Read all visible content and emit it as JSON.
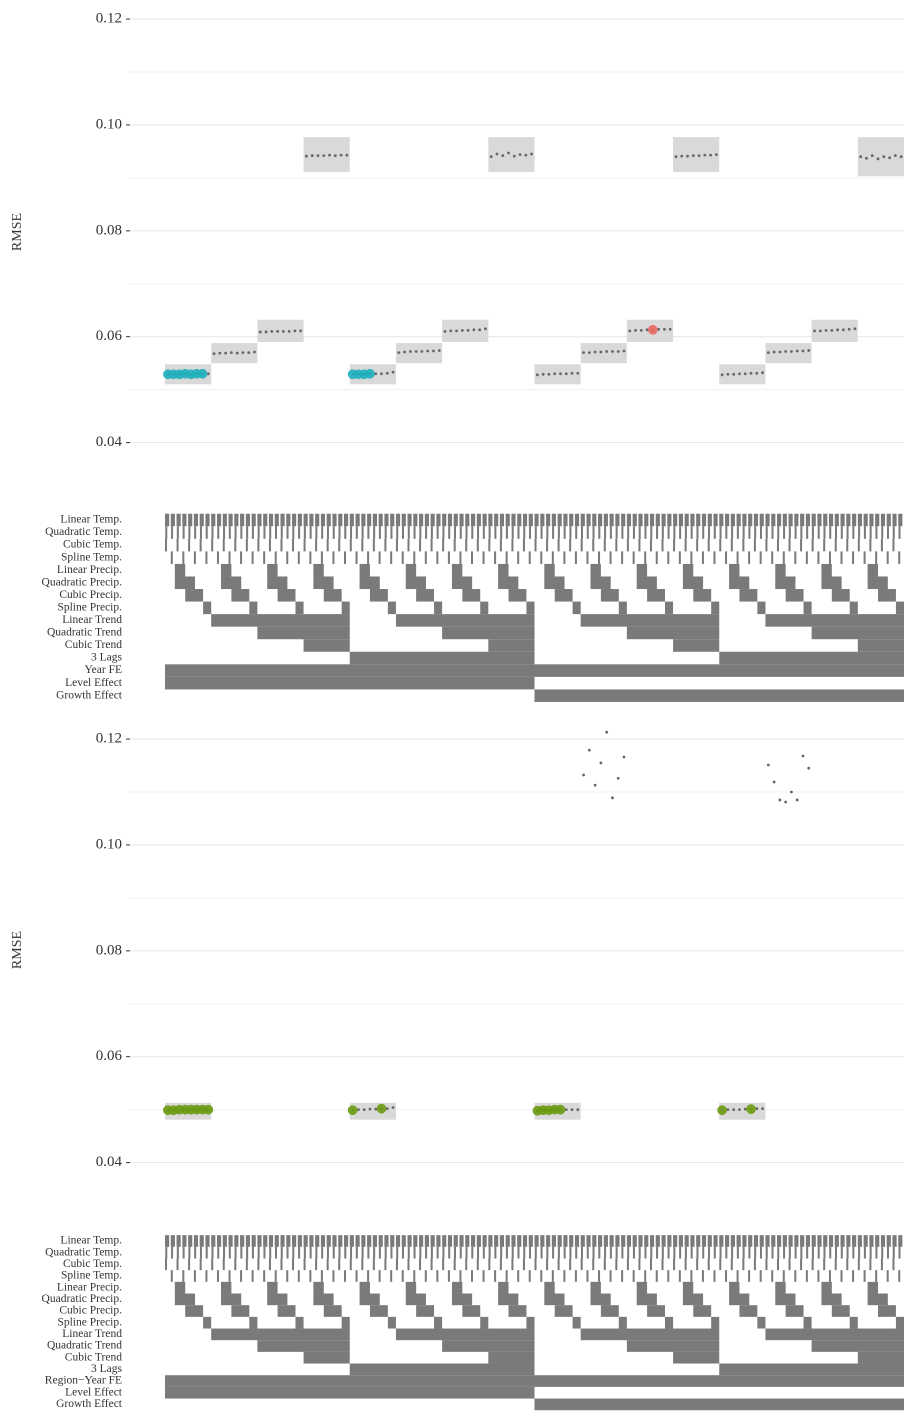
{
  "chart_data": [
    {
      "type": "specification-curve",
      "ylabel": "RMSE",
      "ylim": [
        0.0335,
        0.1236
      ],
      "yticks": [
        0.04,
        0.06,
        0.08,
        {
          "value": 0.1,
          "label": "0.10"
        },
        0.12
      ],
      "minor_grid": [
        0.05,
        0.07,
        0.09,
        0.11
      ],
      "point_color": "#666666",
      "band_color": "#d9d9d9",
      "row_color": "#7a7a7a",
      "values": [
        [
          0.0529,
          0.0529,
          0.0529,
          0.053,
          0.0529,
          0.053,
          0.053,
          0.053
        ],
        [
          0.0568,
          0.0569,
          0.0569,
          0.057,
          0.0569,
          0.057,
          0.057,
          0.0571
        ],
        [
          0.0609,
          0.0609,
          0.061,
          0.061,
          0.061,
          0.061,
          0.0611,
          0.0611
        ],
        [
          0.0941,
          0.0942,
          0.0942,
          0.0942,
          0.0943,
          0.0942,
          0.0943,
          0.0943
        ],
        [
          0.0529,
          0.0529,
          0.0529,
          0.053,
          0.053,
          0.053,
          0.0531,
          0.0533
        ],
        [
          0.057,
          0.0571,
          0.0572,
          0.0572,
          0.0572,
          0.0573,
          0.0573,
          0.0574
        ],
        [
          0.061,
          0.0611,
          0.0611,
          0.0612,
          0.0612,
          0.0613,
          0.0613,
          0.0615
        ],
        [
          0.094,
          0.0945,
          0.0942,
          0.0947,
          0.0941,
          0.0944,
          0.0943,
          0.0945
        ],
        [
          0.0528,
          0.0529,
          0.0529,
          0.053,
          0.053,
          0.053,
          0.0531,
          0.0531
        ],
        [
          0.057,
          0.057,
          0.0571,
          0.0571,
          0.0572,
          0.0572,
          0.0572,
          0.0573
        ],
        [
          0.0611,
          0.0612,
          0.0612,
          0.0613,
          0.0613,
          0.0614,
          0.0614,
          0.0614
        ],
        [
          0.094,
          0.0941,
          0.0941,
          0.0942,
          0.0942,
          0.0943,
          0.0943,
          0.0944
        ],
        [
          0.0528,
          0.0529,
          0.0529,
          0.053,
          0.053,
          0.0531,
          0.0531,
          0.0532
        ],
        [
          0.057,
          0.0571,
          0.0571,
          0.0572,
          0.0572,
          0.0573,
          0.0573,
          0.0574
        ],
        [
          0.0611,
          0.0611,
          0.0612,
          0.0612,
          0.0613,
          0.0613,
          0.0614,
          0.0615
        ],
        [
          0.094,
          0.0937,
          0.0942,
          0.0936,
          0.094,
          0.0938,
          0.0942,
          0.094
        ]
      ],
      "lower": [
        0.051,
        0.055,
        0.059,
        0.0911,
        0.051,
        0.055,
        0.059,
        0.0911,
        0.051,
        0.055,
        0.059,
        0.0911,
        0.051,
        0.055,
        0.059,
        0.0903
      ],
      "upper": [
        0.0548,
        0.0588,
        0.0632,
        0.0977,
        0.0548,
        0.0588,
        0.0632,
        0.0977,
        0.0548,
        0.0588,
        0.0632,
        0.0977,
        0.0548,
        0.0588,
        0.0632,
        0.0977
      ],
      "highlights": [
        {
          "color": "#1fb0bd",
          "points": [
            [
              0,
              0
            ],
            [
              0,
              1
            ],
            [
              0,
              2
            ],
            [
              0,
              3
            ],
            [
              0,
              4
            ],
            [
              0,
              5
            ],
            [
              0,
              6
            ],
            [
              4,
              0
            ],
            [
              4,
              1
            ],
            [
              4,
              2
            ],
            [
              4,
              3
            ]
          ]
        },
        {
          "color": "#e8675f",
          "points": [
            [
              10,
              4
            ]
          ]
        }
      ],
      "rows": [
        {
          "label": "Linear Temp.",
          "period": 1,
          "on": [
            [
              0,
              0.72
            ]
          ]
        },
        {
          "label": "Quadratic Temp.",
          "period": 1,
          "on": [
            [
              0.05,
              0.4
            ]
          ]
        },
        {
          "label": "Cubic Temp.",
          "period": 2,
          "on": [
            [
              0,
              0.35
            ]
          ]
        },
        {
          "label": "Spline Temp.",
          "period": 2,
          "on": [
            [
              1,
              1.35
            ]
          ]
        },
        {
          "label": "Linear Precip.",
          "period": 8,
          "on": [
            [
              1.7,
              3.5
            ]
          ]
        },
        {
          "label": "Quadratic Precip.",
          "period": 8,
          "on": [
            [
              1.7,
              5.2
            ]
          ]
        },
        {
          "label": "Cubic Precip.",
          "period": 8,
          "on": [
            [
              3.5,
              6.6
            ]
          ]
        },
        {
          "label": "Spline Precip.",
          "period": 8,
          "on": [
            [
              6.6,
              8
            ]
          ]
        },
        {
          "label": "Linear Trend",
          "period": 32,
          "on": [
            [
              8,
              32
            ]
          ]
        },
        {
          "label": "Quadratic Trend",
          "period": 32,
          "on": [
            [
              16,
              32
            ]
          ]
        },
        {
          "label": "Cubic Trend",
          "period": 32,
          "on": [
            [
              24,
              32
            ]
          ]
        },
        {
          "label": "3 Lags",
          "period": 64,
          "on": [
            [
              32,
              64
            ]
          ]
        },
        {
          "label": "Year FE",
          "period": 128,
          "on": [
            [
              0,
              128
            ]
          ]
        },
        {
          "label": "Level Effect",
          "period": 128,
          "on": [
            [
              0,
              64
            ]
          ]
        },
        {
          "label": "Growth Effect",
          "period": 128,
          "on": [
            [
              64,
              128
            ]
          ]
        }
      ]
    },
    {
      "type": "specification-curve",
      "ylabel": "RMSE",
      "ylim": [
        0.0335,
        0.1236
      ],
      "yticks": [
        0.04,
        0.06,
        0.08,
        {
          "value": 0.1,
          "label": "0.10"
        },
        0.12
      ],
      "minor_grid": [
        0.05,
        0.07,
        0.09,
        0.11
      ],
      "point_color": "#666666",
      "band_color": "#d9d9d9",
      "row_color": "#7a7a7a",
      "values": [
        [
          0.0499,
          0.0499,
          0.05,
          0.05,
          0.05,
          0.05,
          0.05,
          0.05
        ],
        [
          null,
          null,
          null,
          null,
          null,
          null,
          null,
          null
        ],
        [
          null,
          null,
          null,
          null,
          null,
          null,
          null,
          null
        ],
        [
          null,
          null,
          null,
          null,
          null,
          null,
          null,
          null
        ],
        [
          0.0499,
          0.05,
          0.05,
          0.0501,
          0.0501,
          0.0502,
          0.0502,
          0.0504
        ],
        [
          null,
          null,
          null,
          null,
          null,
          null,
          null,
          null
        ],
        [
          null,
          null,
          null,
          null,
          null,
          null,
          null,
          null
        ],
        [
          null,
          null,
          null,
          null,
          null,
          null,
          null,
          null
        ],
        [
          0.0498,
          0.0499,
          0.0499,
          0.05,
          0.05,
          0.05,
          0.05,
          0.05
        ],
        [
          0.1132,
          0.1179,
          0.1113,
          0.1155,
          0.1213,
          0.1089,
          0.1126,
          0.1166
        ],
        [
          null,
          null,
          null,
          null,
          null,
          null,
          null,
          null
        ],
        [
          null,
          null,
          null,
          null,
          null,
          null,
          null,
          null
        ],
        [
          0.0499,
          0.05,
          0.05,
          0.05,
          0.0501,
          0.0501,
          0.0502,
          0.0502
        ],
        [
          0.1151,
          0.1119,
          0.1085,
          0.1081,
          0.11,
          0.1085,
          0.1168,
          0.1145
        ],
        [
          null,
          null,
          null,
          null,
          null,
          null,
          null,
          null
        ],
        [
          null,
          null,
          null,
          null,
          null,
          null,
          null,
          null
        ]
      ],
      "lower": [
        0.0481,
        null,
        null,
        null,
        0.0481,
        null,
        null,
        null,
        0.0481,
        null,
        null,
        null,
        0.0481,
        null,
        null,
        null
      ],
      "upper": [
        0.0513,
        null,
        null,
        null,
        0.0513,
        null,
        null,
        null,
        0.0513,
        null,
        null,
        null,
        0.0513,
        null,
        null,
        null
      ],
      "highlights": [
        {
          "color": "#6a9a10",
          "points": [
            [
              0,
              0
            ],
            [
              0,
              1
            ],
            [
              0,
              2
            ],
            [
              0,
              3
            ],
            [
              0,
              4
            ],
            [
              0,
              5
            ],
            [
              0,
              6
            ],
            [
              0,
              7
            ],
            [
              4,
              0
            ],
            [
              4,
              5
            ],
            [
              8,
              0
            ],
            [
              8,
              1
            ],
            [
              8,
              2
            ],
            [
              8,
              3
            ],
            [
              8,
              4
            ],
            [
              12,
              0
            ],
            [
              12,
              5
            ]
          ]
        }
      ],
      "rows": [
        {
          "label": "Linear Temp.",
          "period": 1,
          "on": [
            [
              0,
              0.72
            ]
          ]
        },
        {
          "label": "Quadratic Temp.",
          "period": 1,
          "on": [
            [
              0.05,
              0.4
            ]
          ]
        },
        {
          "label": "Cubic Temp.",
          "period": 2,
          "on": [
            [
              0,
              0.35
            ]
          ]
        },
        {
          "label": "Spline Temp.",
          "period": 2,
          "on": [
            [
              1,
              1.35
            ]
          ]
        },
        {
          "label": "Linear Precip.",
          "period": 8,
          "on": [
            [
              1.7,
              3.5
            ]
          ]
        },
        {
          "label": "Quadratic Precip.",
          "period": 8,
          "on": [
            [
              1.7,
              5.2
            ]
          ]
        },
        {
          "label": "Cubic Precip.",
          "period": 8,
          "on": [
            [
              3.5,
              6.6
            ]
          ]
        },
        {
          "label": "Spline Precip.",
          "period": 8,
          "on": [
            [
              6.6,
              8
            ]
          ]
        },
        {
          "label": "Linear Trend",
          "period": 32,
          "on": [
            [
              8,
              32
            ]
          ]
        },
        {
          "label": "Quadratic Trend",
          "period": 32,
          "on": [
            [
              16,
              32
            ]
          ]
        },
        {
          "label": "Cubic Trend",
          "period": 32,
          "on": [
            [
              24,
              32
            ]
          ]
        },
        {
          "label": "3 Lags",
          "period": 64,
          "on": [
            [
              32,
              64
            ]
          ]
        },
        {
          "label": "Region−Year FE",
          "period": 128,
          "on": [
            [
              0,
              128
            ]
          ]
        },
        {
          "label": "Level Effect",
          "period": 128,
          "on": [
            [
              0,
              64
            ]
          ]
        },
        {
          "label": "Growth Effect",
          "period": 128,
          "on": [
            [
              64,
              128
            ]
          ]
        }
      ]
    }
  ]
}
